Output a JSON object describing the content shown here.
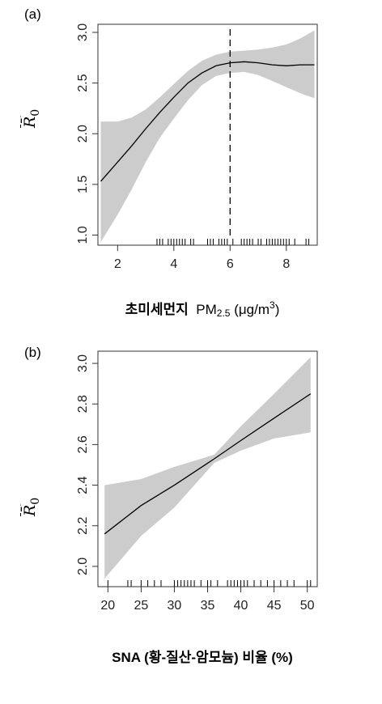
{
  "chart_data": [
    {
      "panel_label": "(a)",
      "type": "line",
      "ylabel": "R̄",
      "ylabel_sub": "0",
      "xlabel_ko": "초미세먼지",
      "xlabel_main": "PM",
      "xlabel_sub": "2.5",
      "xlabel_unit_pre": "(μg/m",
      "xlabel_unit_sup": "3",
      "xlabel_unit_post": ")",
      "xlim": [
        1.3,
        9.1
      ],
      "ylim": [
        0.9,
        3.08
      ],
      "xticks": [
        2,
        4,
        6,
        8
      ],
      "yticks": [
        "1.0",
        "1.5",
        "2.0",
        "2.5",
        "3.0"
      ],
      "series": [
        {
          "x": [
            1.4,
            2.0,
            2.5,
            3.0,
            3.5,
            4.0,
            4.5,
            5.0,
            5.5,
            6.0,
            6.5,
            7.0,
            7.5,
            8.0,
            8.5,
            9.0
          ],
          "y": [
            1.53,
            1.72,
            1.88,
            2.05,
            2.21,
            2.36,
            2.5,
            2.6,
            2.67,
            2.7,
            2.71,
            2.7,
            2.68,
            2.67,
            2.68,
            2.68
          ],
          "lower": [
            0.93,
            1.2,
            1.45,
            1.72,
            1.96,
            2.15,
            2.33,
            2.48,
            2.57,
            2.6,
            2.61,
            2.58,
            2.52,
            2.46,
            2.4,
            2.35
          ],
          "upper": [
            2.12,
            2.12,
            2.16,
            2.24,
            2.36,
            2.49,
            2.62,
            2.72,
            2.78,
            2.81,
            2.82,
            2.83,
            2.85,
            2.88,
            2.94,
            3.02
          ]
        }
      ],
      "vline_x": 6.0,
      "rug": [
        3.4,
        3.5,
        3.6,
        3.8,
        3.9,
        4.0,
        4.1,
        4.2,
        4.3,
        4.4,
        4.6,
        4.7,
        5.2,
        5.3,
        5.4,
        5.6,
        5.7,
        5.8,
        5.9,
        6.1,
        6.4,
        6.5,
        6.6,
        6.7,
        6.8,
        7.0,
        7.1,
        7.3,
        7.4,
        7.5,
        7.6,
        7.7,
        7.8,
        7.9,
        8.0,
        8.1,
        8.3,
        8.7,
        8.8
      ]
    },
    {
      "panel_label": "(b)",
      "type": "line",
      "ylabel": "R̄",
      "ylabel_sub": "0",
      "xlabel": "SNA (황-질산-암모늄) 비율 (%)",
      "xlim": [
        18.5,
        51.5
      ],
      "ylim": [
        1.9,
        3.06
      ],
      "xticks": [
        20,
        25,
        30,
        35,
        40,
        45,
        50
      ],
      "yticks": [
        "2.0",
        "2.2",
        "2.4",
        "2.6",
        "2.8",
        "3.0"
      ],
      "series": [
        {
          "x": [
            19.5,
            25,
            30,
            36,
            40,
            45,
            50.5
          ],
          "y": [
            2.16,
            2.3,
            2.4,
            2.53,
            2.62,
            2.73,
            2.85
          ],
          "lower": [
            1.94,
            2.15,
            2.29,
            2.51,
            2.57,
            2.63,
            2.66
          ],
          "upper": [
            2.4,
            2.43,
            2.49,
            2.55,
            2.69,
            2.85,
            3.03
          ]
        }
      ],
      "rug": [
        20,
        23,
        23.5,
        25,
        26,
        27,
        28,
        30,
        30.5,
        31,
        31.5,
        32,
        32.5,
        33,
        34,
        35,
        35.5,
        36.5,
        38,
        38.5,
        39,
        39.5,
        40,
        40.5,
        41,
        42,
        43,
        44,
        45,
        46,
        47,
        48,
        50,
        50.5
      ]
    }
  ],
  "colors": {
    "band": "#cccccc",
    "line": "#000000",
    "axis": "#333333"
  }
}
